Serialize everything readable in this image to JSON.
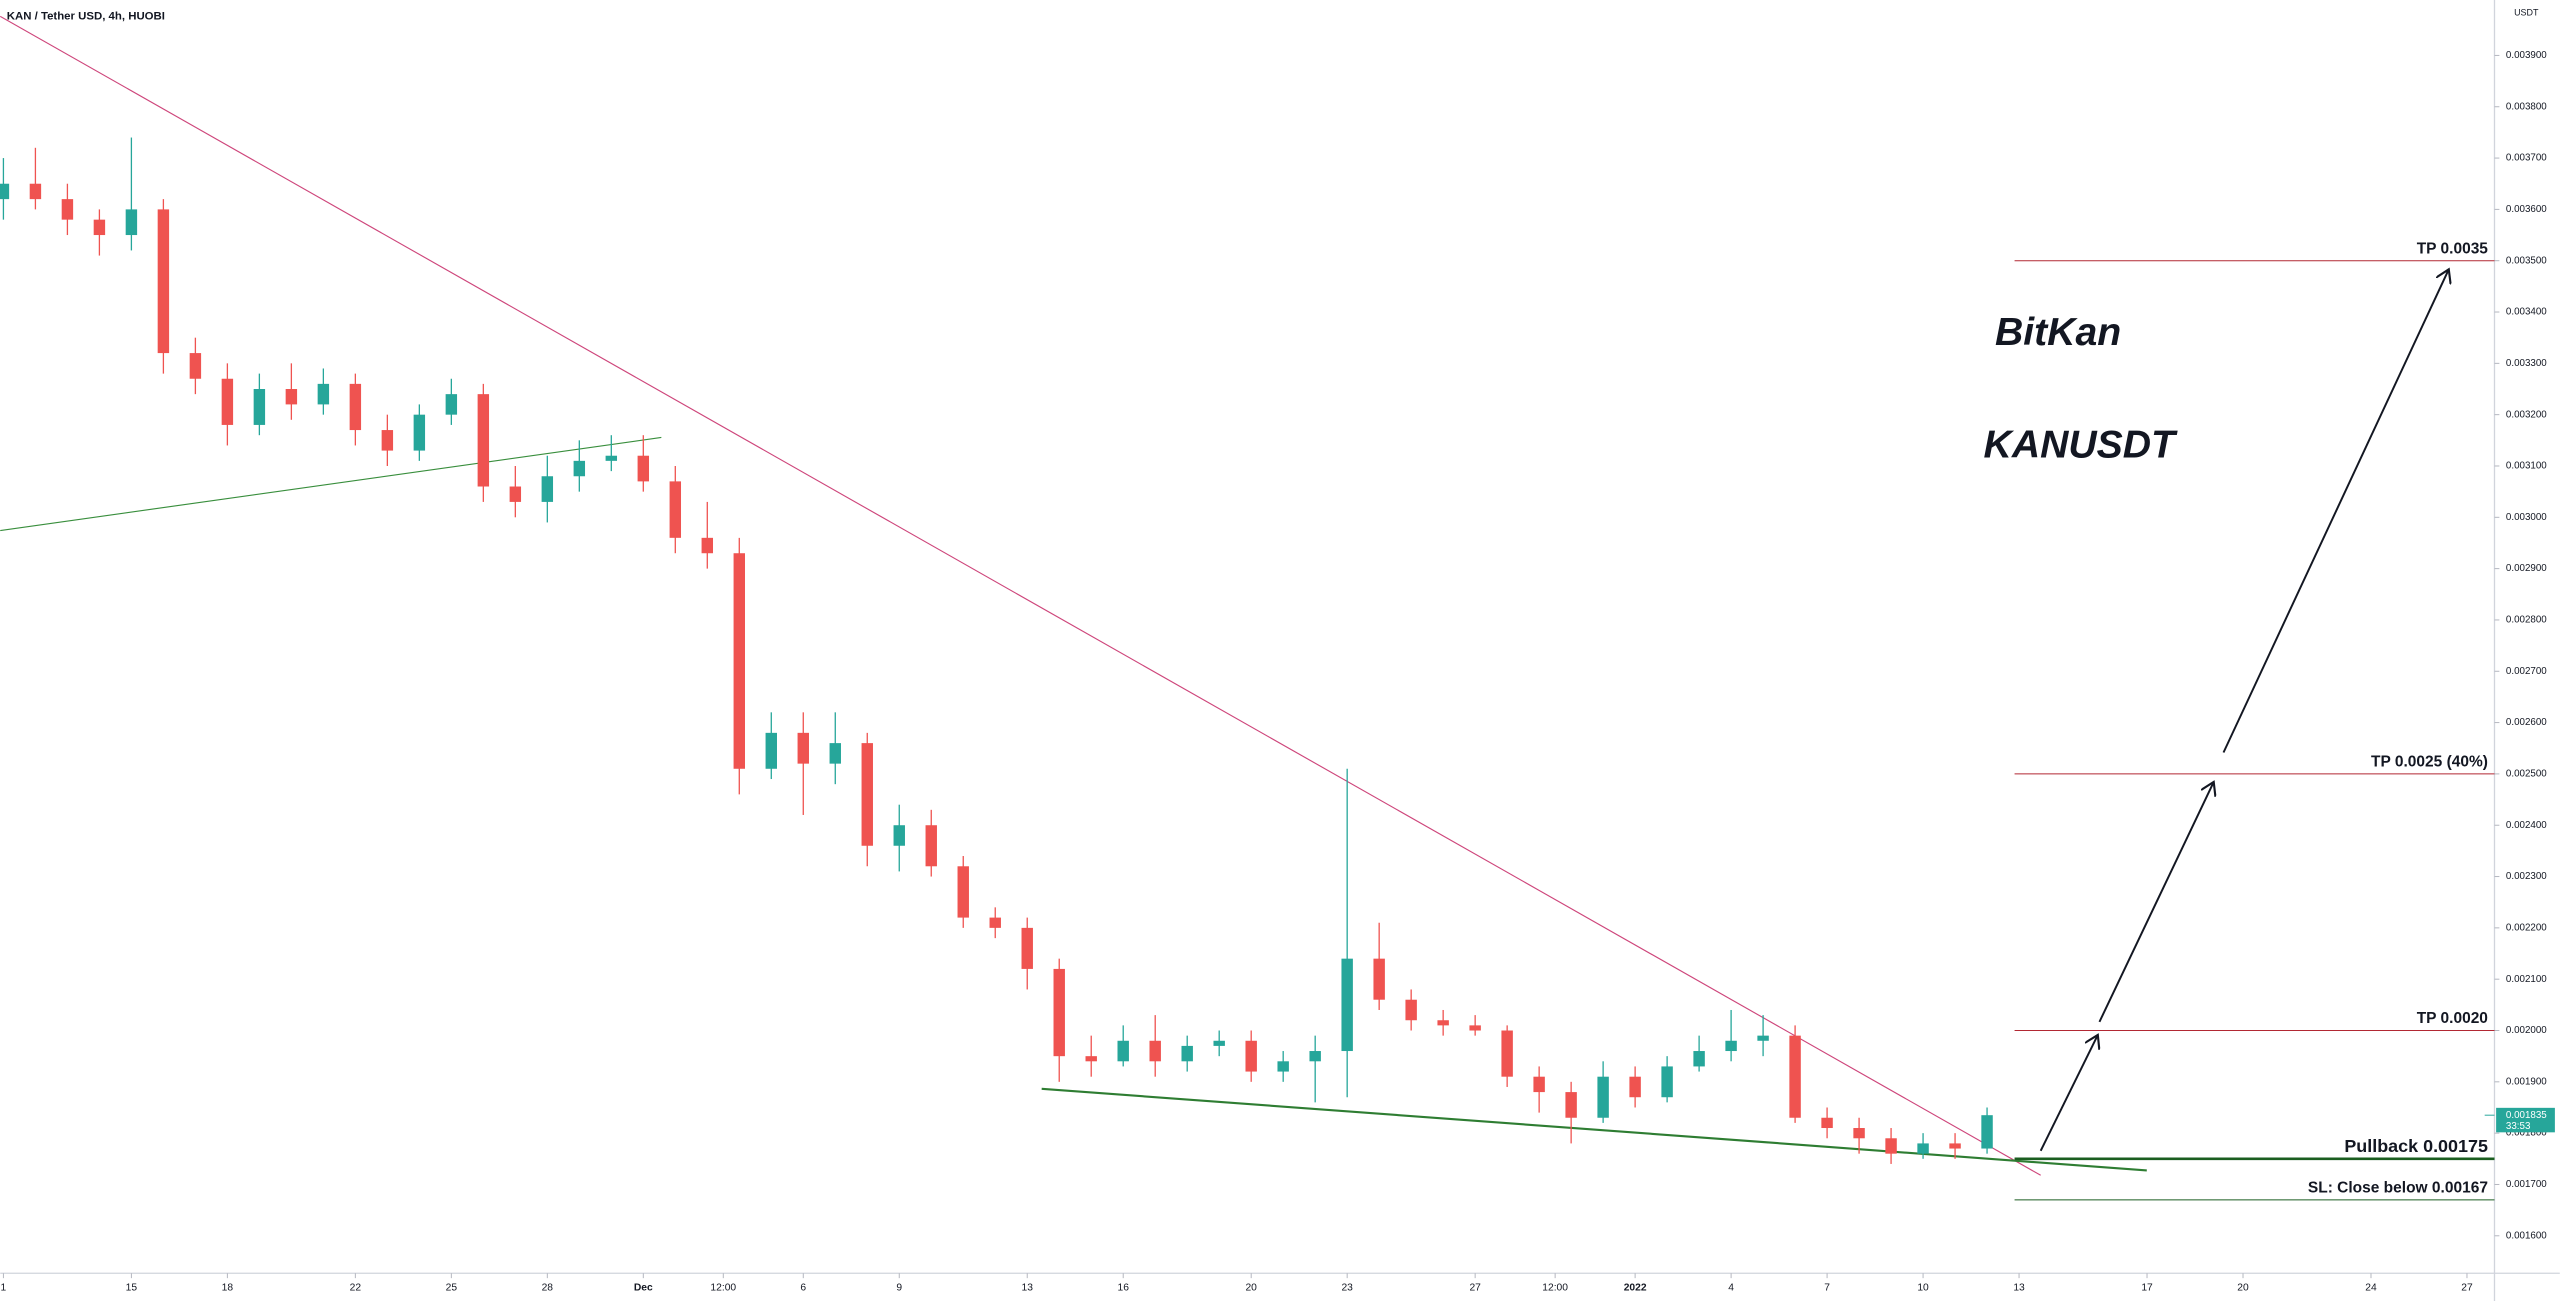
{
  "chart_data": {
    "type": "candlestick",
    "title": "KAN / Tether USD, 4h, HUOBI",
    "currency": "USDT",
    "x": [
      0,
      1,
      2,
      3,
      4,
      5,
      6,
      7,
      8,
      9,
      10,
      11,
      12,
      13,
      14,
      15,
      16,
      17,
      18,
      19,
      20,
      21,
      22,
      23,
      24,
      25,
      26,
      27,
      28,
      29,
      30,
      31,
      32,
      33,
      34,
      35,
      36,
      37,
      38,
      39,
      40,
      41,
      42,
      43,
      44,
      45,
      46,
      47,
      48,
      49,
      50,
      51,
      52,
      53,
      54,
      55,
      56,
      57,
      58,
      59,
      60,
      61,
      62
    ],
    "open": [
      0.00362,
      0.00365,
      0.00362,
      0.00358,
      0.00355,
      0.0036,
      0.00332,
      0.00327,
      0.00318,
      0.00325,
      0.00322,
      0.00326,
      0.00317,
      0.00313,
      0.0032,
      0.00324,
      0.00306,
      0.00303,
      0.00308,
      0.00311,
      0.00312,
      0.00307,
      0.00296,
      0.00293,
      0.00251,
      0.00258,
      0.00252,
      0.00256,
      0.00236,
      0.0024,
      0.00232,
      0.00222,
      0.0022,
      0.00212,
      0.00195,
      0.00194,
      0.00198,
      0.00194,
      0.00197,
      0.00198,
      0.00192,
      0.00194,
      0.00196,
      0.00214,
      0.00206,
      0.00202,
      0.00201,
      0.002,
      0.00191,
      0.00188,
      0.00183,
      0.00191,
      0.00187,
      0.00193,
      0.00196,
      0.00198,
      0.00199,
      0.00183,
      0.00181,
      0.00179,
      0.00176,
      0.00178,
      0.00177
    ],
    "high": [
      0.0037,
      0.00372,
      0.00365,
      0.0036,
      0.00374,
      0.00362,
      0.00335,
      0.0033,
      0.00328,
      0.0033,
      0.00329,
      0.00328,
      0.0032,
      0.00322,
      0.00327,
      0.00326,
      0.0031,
      0.00312,
      0.00315,
      0.00316,
      0.00316,
      0.0031,
      0.00303,
      0.00296,
      0.00262,
      0.00262,
      0.00262,
      0.00258,
      0.00244,
      0.00243,
      0.00234,
      0.00224,
      0.00222,
      0.00214,
      0.00199,
      0.00201,
      0.00203,
      0.00199,
      0.002,
      0.002,
      0.00196,
      0.00199,
      0.00251,
      0.00221,
      0.00208,
      0.00204,
      0.00203,
      0.00201,
      0.00193,
      0.0019,
      0.00194,
      0.00193,
      0.00195,
      0.00199,
      0.00204,
      0.00203,
      0.00201,
      0.00185,
      0.00183,
      0.00181,
      0.0018,
      0.0018,
      0.00185
    ],
    "low": [
      0.00358,
      0.0036,
      0.00355,
      0.00351,
      0.00352,
      0.00328,
      0.00324,
      0.00314,
      0.00316,
      0.00319,
      0.0032,
      0.00314,
      0.0031,
      0.00311,
      0.00318,
      0.00303,
      0.003,
      0.00299,
      0.00305,
      0.00309,
      0.00305,
      0.00293,
      0.0029,
      0.00246,
      0.00249,
      0.00242,
      0.00248,
      0.00232,
      0.00231,
      0.0023,
      0.0022,
      0.00218,
      0.00208,
      0.0019,
      0.00191,
      0.00193,
      0.00191,
      0.00192,
      0.00195,
      0.0019,
      0.0019,
      0.00186,
      0.00187,
      0.00204,
      0.002,
      0.00199,
      0.00199,
      0.00189,
      0.00184,
      0.00178,
      0.00182,
      0.00185,
      0.00186,
      0.00192,
      0.00194,
      0.00195,
      0.00182,
      0.00179,
      0.00176,
      0.00174,
      0.00175,
      0.00175,
      0.00176
    ],
    "close": [
      0.00365,
      0.00362,
      0.00358,
      0.00355,
      0.0036,
      0.00332,
      0.00327,
      0.00318,
      0.00325,
      0.00322,
      0.00326,
      0.00317,
      0.00313,
      0.0032,
      0.00324,
      0.00306,
      0.00303,
      0.00308,
      0.00311,
      0.00312,
      0.00307,
      0.00296,
      0.00293,
      0.00251,
      0.00258,
      0.00252,
      0.00256,
      0.00236,
      0.0024,
      0.00232,
      0.00222,
      0.0022,
      0.00212,
      0.00195,
      0.00194,
      0.00198,
      0.00194,
      0.00197,
      0.00198,
      0.00192,
      0.00194,
      0.00196,
      0.00214,
      0.00206,
      0.00202,
      0.00201,
      0.002,
      0.00191,
      0.00188,
      0.00183,
      0.00191,
      0.00187,
      0.00193,
      0.00196,
      0.00198,
      0.00199,
      0.00183,
      0.00181,
      0.00179,
      0.00176,
      0.00178,
      0.00177,
      0.001835
    ],
    "up_color": "#26a69a",
    "down_color": "#ef5350",
    "xlim": [
      -0.1,
      77.86
    ],
    "ylim": [
      0.001527,
      0.004008
    ],
    "xticks": [
      {
        "value": 0,
        "label": "1"
      },
      {
        "value": 4,
        "label": "15"
      },
      {
        "value": 7,
        "label": "18"
      },
      {
        "value": 11,
        "label": "22"
      },
      {
        "value": 14,
        "label": "25"
      },
      {
        "value": 17,
        "label": "28"
      },
      {
        "value": 20,
        "label": "Dec"
      },
      {
        "value": 22.5,
        "label": "12:00"
      },
      {
        "value": 25,
        "label": "6"
      },
      {
        "value": 28,
        "label": "9"
      },
      {
        "value": 32,
        "label": "13"
      },
      {
        "value": 35,
        "label": "16"
      },
      {
        "value": 39,
        "label": "20"
      },
      {
        "value": 42,
        "label": "23"
      },
      {
        "value": 46,
        "label": "27"
      },
      {
        "value": 48.5,
        "label": "12:00"
      },
      {
        "value": 51,
        "label": "2022"
      },
      {
        "value": 54,
        "label": "4"
      },
      {
        "value": 57,
        "label": "7"
      },
      {
        "value": 60,
        "label": "10"
      },
      {
        "value": 63,
        "label": "13"
      },
      {
        "value": 67,
        "label": "17"
      },
      {
        "value": 70,
        "label": "20"
      },
      {
        "value": 74,
        "label": "24"
      },
      {
        "value": 77,
        "label": "27"
      }
    ],
    "yticks": [
      {
        "value": 0.0016,
        "label": "0.001600"
      },
      {
        "value": 0.0017,
        "label": "0.001700"
      },
      {
        "value": 0.0018,
        "label": "0.001800"
      },
      {
        "value": 0.0019,
        "label": "0.001900"
      },
      {
        "value": 0.002,
        "label": "0.002000"
      },
      {
        "value": 0.0021,
        "label": "0.002100"
      },
      {
        "value": 0.0022,
        "label": "0.002200"
      },
      {
        "value": 0.0023,
        "label": "0.002300"
      },
      {
        "value": 0.0024,
        "label": "0.002400"
      },
      {
        "value": 0.0025,
        "label": "0.002500"
      },
      {
        "value": 0.0026,
        "label": "0.002600"
      },
      {
        "value": 0.0027,
        "label": "0.002700"
      },
      {
        "value": 0.0028,
        "label": "0.002800"
      },
      {
        "value": 0.0029,
        "label": "0.002900"
      },
      {
        "value": 0.003,
        "label": "0.003000"
      },
      {
        "value": 0.0031,
        "label": "0.003100"
      },
      {
        "value": 0.0032,
        "label": "0.003200"
      },
      {
        "value": 0.0033,
        "label": "0.003300"
      },
      {
        "value": 0.0034,
        "label": "0.003400"
      },
      {
        "value": 0.0035,
        "label": "0.003500"
      },
      {
        "value": 0.0036,
        "label": "0.003600"
      },
      {
        "value": 0.0037,
        "label": "0.003700"
      },
      {
        "value": 0.0038,
        "label": "0.003800"
      },
      {
        "value": 0.0039,
        "label": "0.003900"
      }
    ],
    "grid": false,
    "last_price": {
      "value": 0.001835,
      "label": "0.001835",
      "countdown": "33:53",
      "color": "#26a69a"
    },
    "levels": [
      {
        "label": "TP 0.0035",
        "value": 0.0035,
        "color": "#b22833"
      },
      {
        "label": "TP 0.0025 (40%)",
        "value": 0.0025,
        "color": "#b22833"
      },
      {
        "label": "TP 0.0020",
        "value": 0.002,
        "color": "#b22833"
      },
      {
        "label": "Pullback 0.00175",
        "value": 0.00175,
        "color": "#1b5e20"
      },
      {
        "label": "SL: Close below 0.00167",
        "value": 0.00167,
        "color": "#1b5e20"
      }
    ],
    "annotations": [
      "BitKan",
      "KANUSDT"
    ]
  }
}
